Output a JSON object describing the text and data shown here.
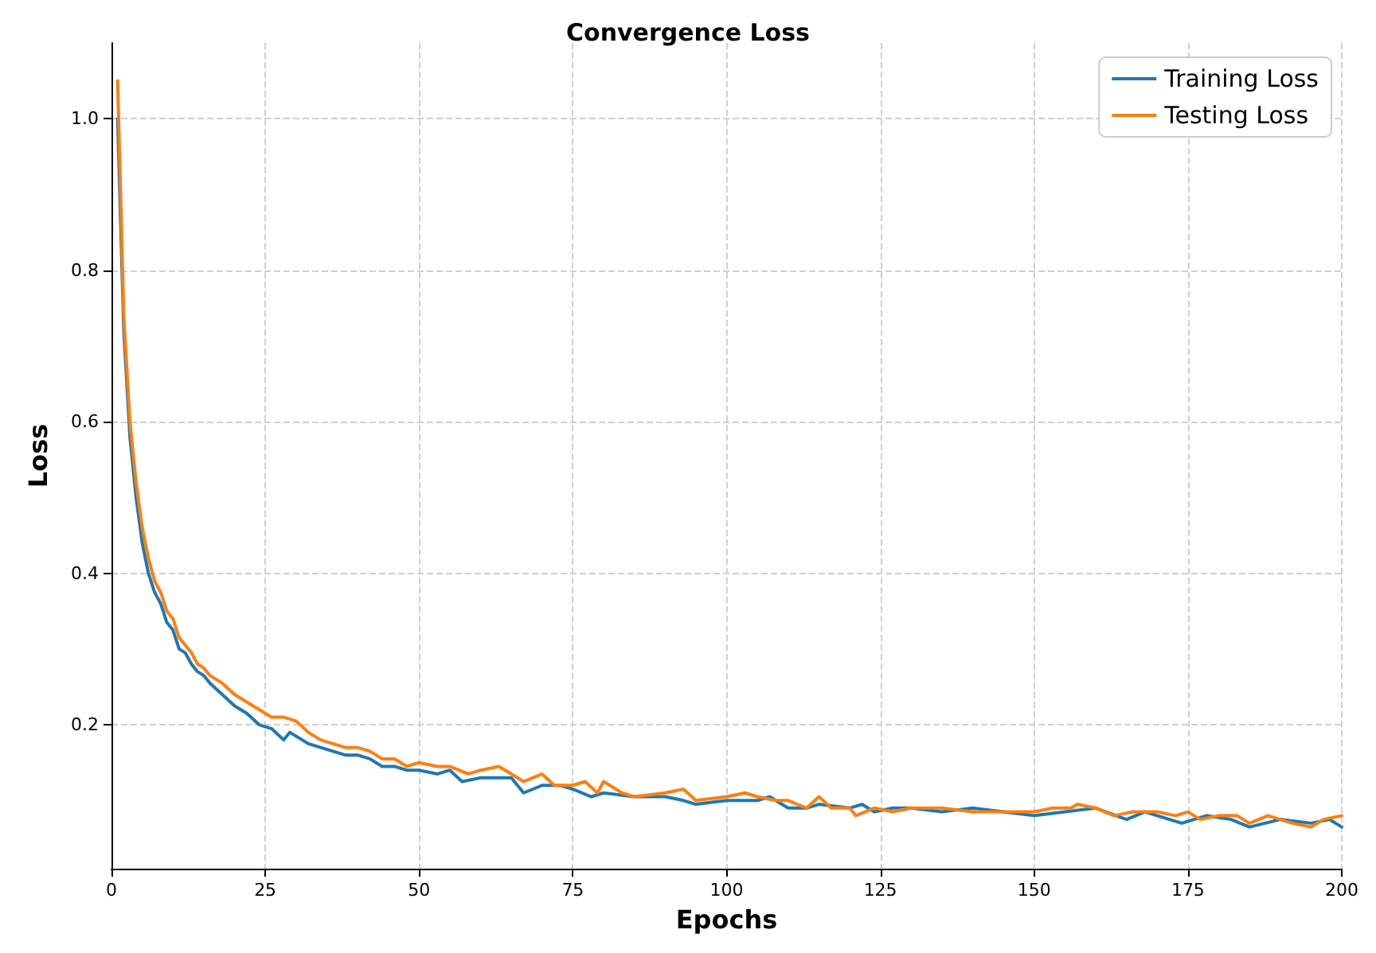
{
  "chart_data": {
    "type": "line",
    "title": "Convergence Loss",
    "xlabel": "Epochs",
    "ylabel": "Loss",
    "xlim": [
      0,
      200
    ],
    "xticks": [
      0,
      25,
      50,
      75,
      100,
      125,
      150,
      175,
      200
    ],
    "ylim": [
      0.01,
      1.1
    ],
    "yticks": [
      0.2,
      0.4,
      0.6,
      0.8,
      {
        "value": 1,
        "label": "1.0"
      }
    ],
    "grid": true,
    "legend": "top right",
    "line_style": "solid",
    "marker": "none",
    "series": [
      {
        "name": "Training Loss",
        "color": "#1f77b4",
        "x": [
          1,
          2,
          3,
          4,
          5,
          6,
          7,
          8,
          9,
          10,
          11,
          12,
          13,
          14,
          15,
          16,
          18,
          20,
          22,
          24,
          26,
          28,
          29,
          30,
          32,
          34,
          36,
          38,
          40,
          42,
          44,
          46,
          48,
          50,
          53,
          55,
          57,
          60,
          63,
          65,
          67,
          70,
          73,
          75,
          78,
          80,
          85,
          90,
          93,
          95,
          100,
          105,
          107,
          110,
          113,
          115,
          120,
          122,
          124,
          127,
          130,
          135,
          140,
          145,
          150,
          155,
          160,
          165,
          168,
          170,
          174,
          178,
          182,
          185,
          190,
          195,
          198,
          200
        ],
        "values": [
          1.0,
          0.72,
          0.58,
          0.5,
          0.44,
          0.4,
          0.375,
          0.36,
          0.335,
          0.325,
          0.3,
          0.295,
          0.28,
          0.27,
          0.265,
          0.255,
          0.24,
          0.225,
          0.215,
          0.2,
          0.195,
          0.18,
          0.19,
          0.185,
          0.175,
          0.17,
          0.165,
          0.16,
          0.16,
          0.155,
          0.145,
          0.145,
          0.14,
          0.14,
          0.135,
          0.14,
          0.125,
          0.13,
          0.13,
          0.13,
          0.11,
          0.12,
          0.12,
          0.115,
          0.105,
          0.11,
          0.105,
          0.105,
          0.1,
          0.095,
          0.1,
          0.1,
          0.105,
          0.09,
          0.09,
          0.095,
          0.09,
          0.095,
          0.085,
          0.09,
          0.09,
          0.085,
          0.09,
          0.085,
          0.08,
          0.085,
          0.09,
          0.075,
          0.085,
          0.08,
          0.07,
          0.08,
          0.075,
          0.065,
          0.075,
          0.07,
          0.075,
          0.065
        ]
      },
      {
        "name": "Testing Loss",
        "color": "#ff7f0e",
        "x": [
          1,
          2,
          3,
          4,
          5,
          6,
          7,
          8,
          9,
          10,
          11,
          12,
          13,
          14,
          15,
          16,
          18,
          20,
          22,
          24,
          26,
          28,
          30,
          32,
          34,
          36,
          38,
          40,
          42,
          44,
          46,
          48,
          50,
          53,
          55,
          58,
          60,
          63,
          65,
          67,
          70,
          72,
          75,
          77,
          79,
          80,
          83,
          85,
          90,
          93,
          95,
          100,
          103,
          105,
          108,
          110,
          113,
          115,
          117,
          120,
          121,
          124,
          127,
          130,
          135,
          140,
          145,
          150,
          153,
          156,
          157,
          160,
          163,
          166,
          170,
          173,
          175,
          177,
          180,
          183,
          185,
          188,
          192,
          195,
          197,
          200
        ],
        "values": [
          1.05,
          0.74,
          0.6,
          0.52,
          0.46,
          0.42,
          0.39,
          0.375,
          0.35,
          0.34,
          0.315,
          0.305,
          0.295,
          0.28,
          0.275,
          0.265,
          0.255,
          0.24,
          0.23,
          0.22,
          0.21,
          0.21,
          0.205,
          0.19,
          0.18,
          0.175,
          0.17,
          0.17,
          0.165,
          0.155,
          0.155,
          0.145,
          0.15,
          0.145,
          0.145,
          0.135,
          0.14,
          0.145,
          0.135,
          0.125,
          0.135,
          0.12,
          0.12,
          0.125,
          0.11,
          0.125,
          0.11,
          0.105,
          0.11,
          0.115,
          0.1,
          0.105,
          0.11,
          0.105,
          0.1,
          0.1,
          0.09,
          0.105,
          0.09,
          0.09,
          0.08,
          0.09,
          0.085,
          0.09,
          0.09,
          0.085,
          0.085,
          0.085,
          0.09,
          0.09,
          0.095,
          0.09,
          0.08,
          0.085,
          0.085,
          0.08,
          0.085,
          0.075,
          0.08,
          0.08,
          0.07,
          0.08,
          0.07,
          0.065,
          0.075,
          0.08
        ]
      }
    ]
  }
}
